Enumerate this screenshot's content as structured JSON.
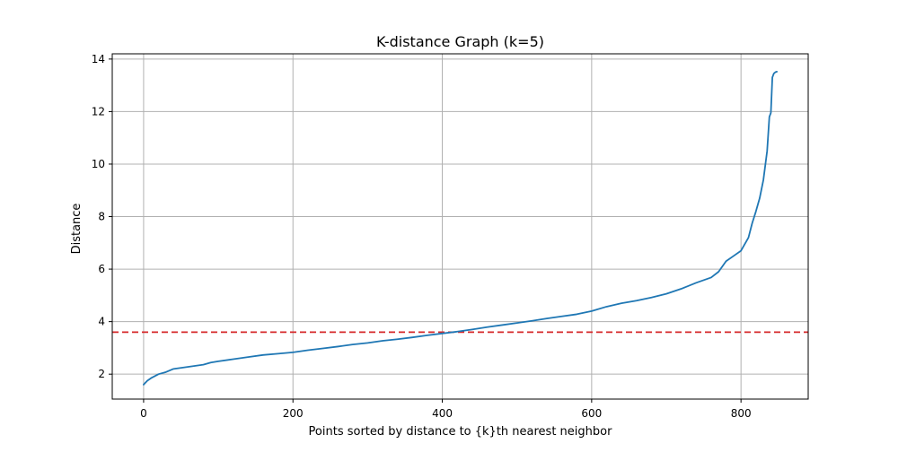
{
  "chart_data": {
    "type": "line",
    "title": "K-distance Graph (k=5)",
    "xlabel": "Points sorted by distance to {k}th nearest neighbor",
    "ylabel": "Distance",
    "xlim": [
      -42,
      890
    ],
    "ylim": [
      1.05,
      14.2
    ],
    "xticks": [
      0,
      200,
      400,
      600,
      800
    ],
    "yticks": [
      2,
      4,
      6,
      8,
      10,
      12,
      14
    ],
    "xtick_labels": [
      "0",
      "200",
      "400",
      "600",
      "800"
    ],
    "ytick_labels": [
      "2",
      "4",
      "6",
      "8",
      "10",
      "12",
      "14"
    ],
    "grid": true,
    "series": [
      {
        "color": "#1f77b4",
        "x": [
          0,
          5,
          10,
          20,
          30,
          40,
          60,
          80,
          90,
          100,
          120,
          140,
          160,
          180,
          200,
          220,
          240,
          260,
          280,
          300,
          320,
          340,
          360,
          380,
          400,
          420,
          440,
          460,
          480,
          500,
          520,
          540,
          560,
          580,
          600,
          620,
          640,
          660,
          680,
          700,
          720,
          740,
          760,
          770,
          780,
          790,
          800,
          810,
          815,
          820,
          825,
          830,
          835,
          838,
          840,
          842,
          844,
          846,
          848
        ],
        "y": [
          1.6,
          1.75,
          1.85,
          2.0,
          2.08,
          2.2,
          2.28,
          2.36,
          2.44,
          2.49,
          2.57,
          2.65,
          2.73,
          2.78,
          2.83,
          2.91,
          2.98,
          3.05,
          3.13,
          3.19,
          3.27,
          3.33,
          3.4,
          3.48,
          3.55,
          3.62,
          3.7,
          3.79,
          3.87,
          3.95,
          4.03,
          4.12,
          4.2,
          4.28,
          4.4,
          4.57,
          4.7,
          4.8,
          4.92,
          5.06,
          5.25,
          5.48,
          5.68,
          5.9,
          6.3,
          6.5,
          6.7,
          7.2,
          7.75,
          8.2,
          8.7,
          9.4,
          10.5,
          11.8,
          11.95,
          13.3,
          13.45,
          13.5,
          13.52
        ]
      }
    ],
    "reference_lines": [
      {
        "orientation": "horizontal",
        "y": 3.6,
        "color": "#d62728",
        "style": "dashed"
      }
    ]
  }
}
